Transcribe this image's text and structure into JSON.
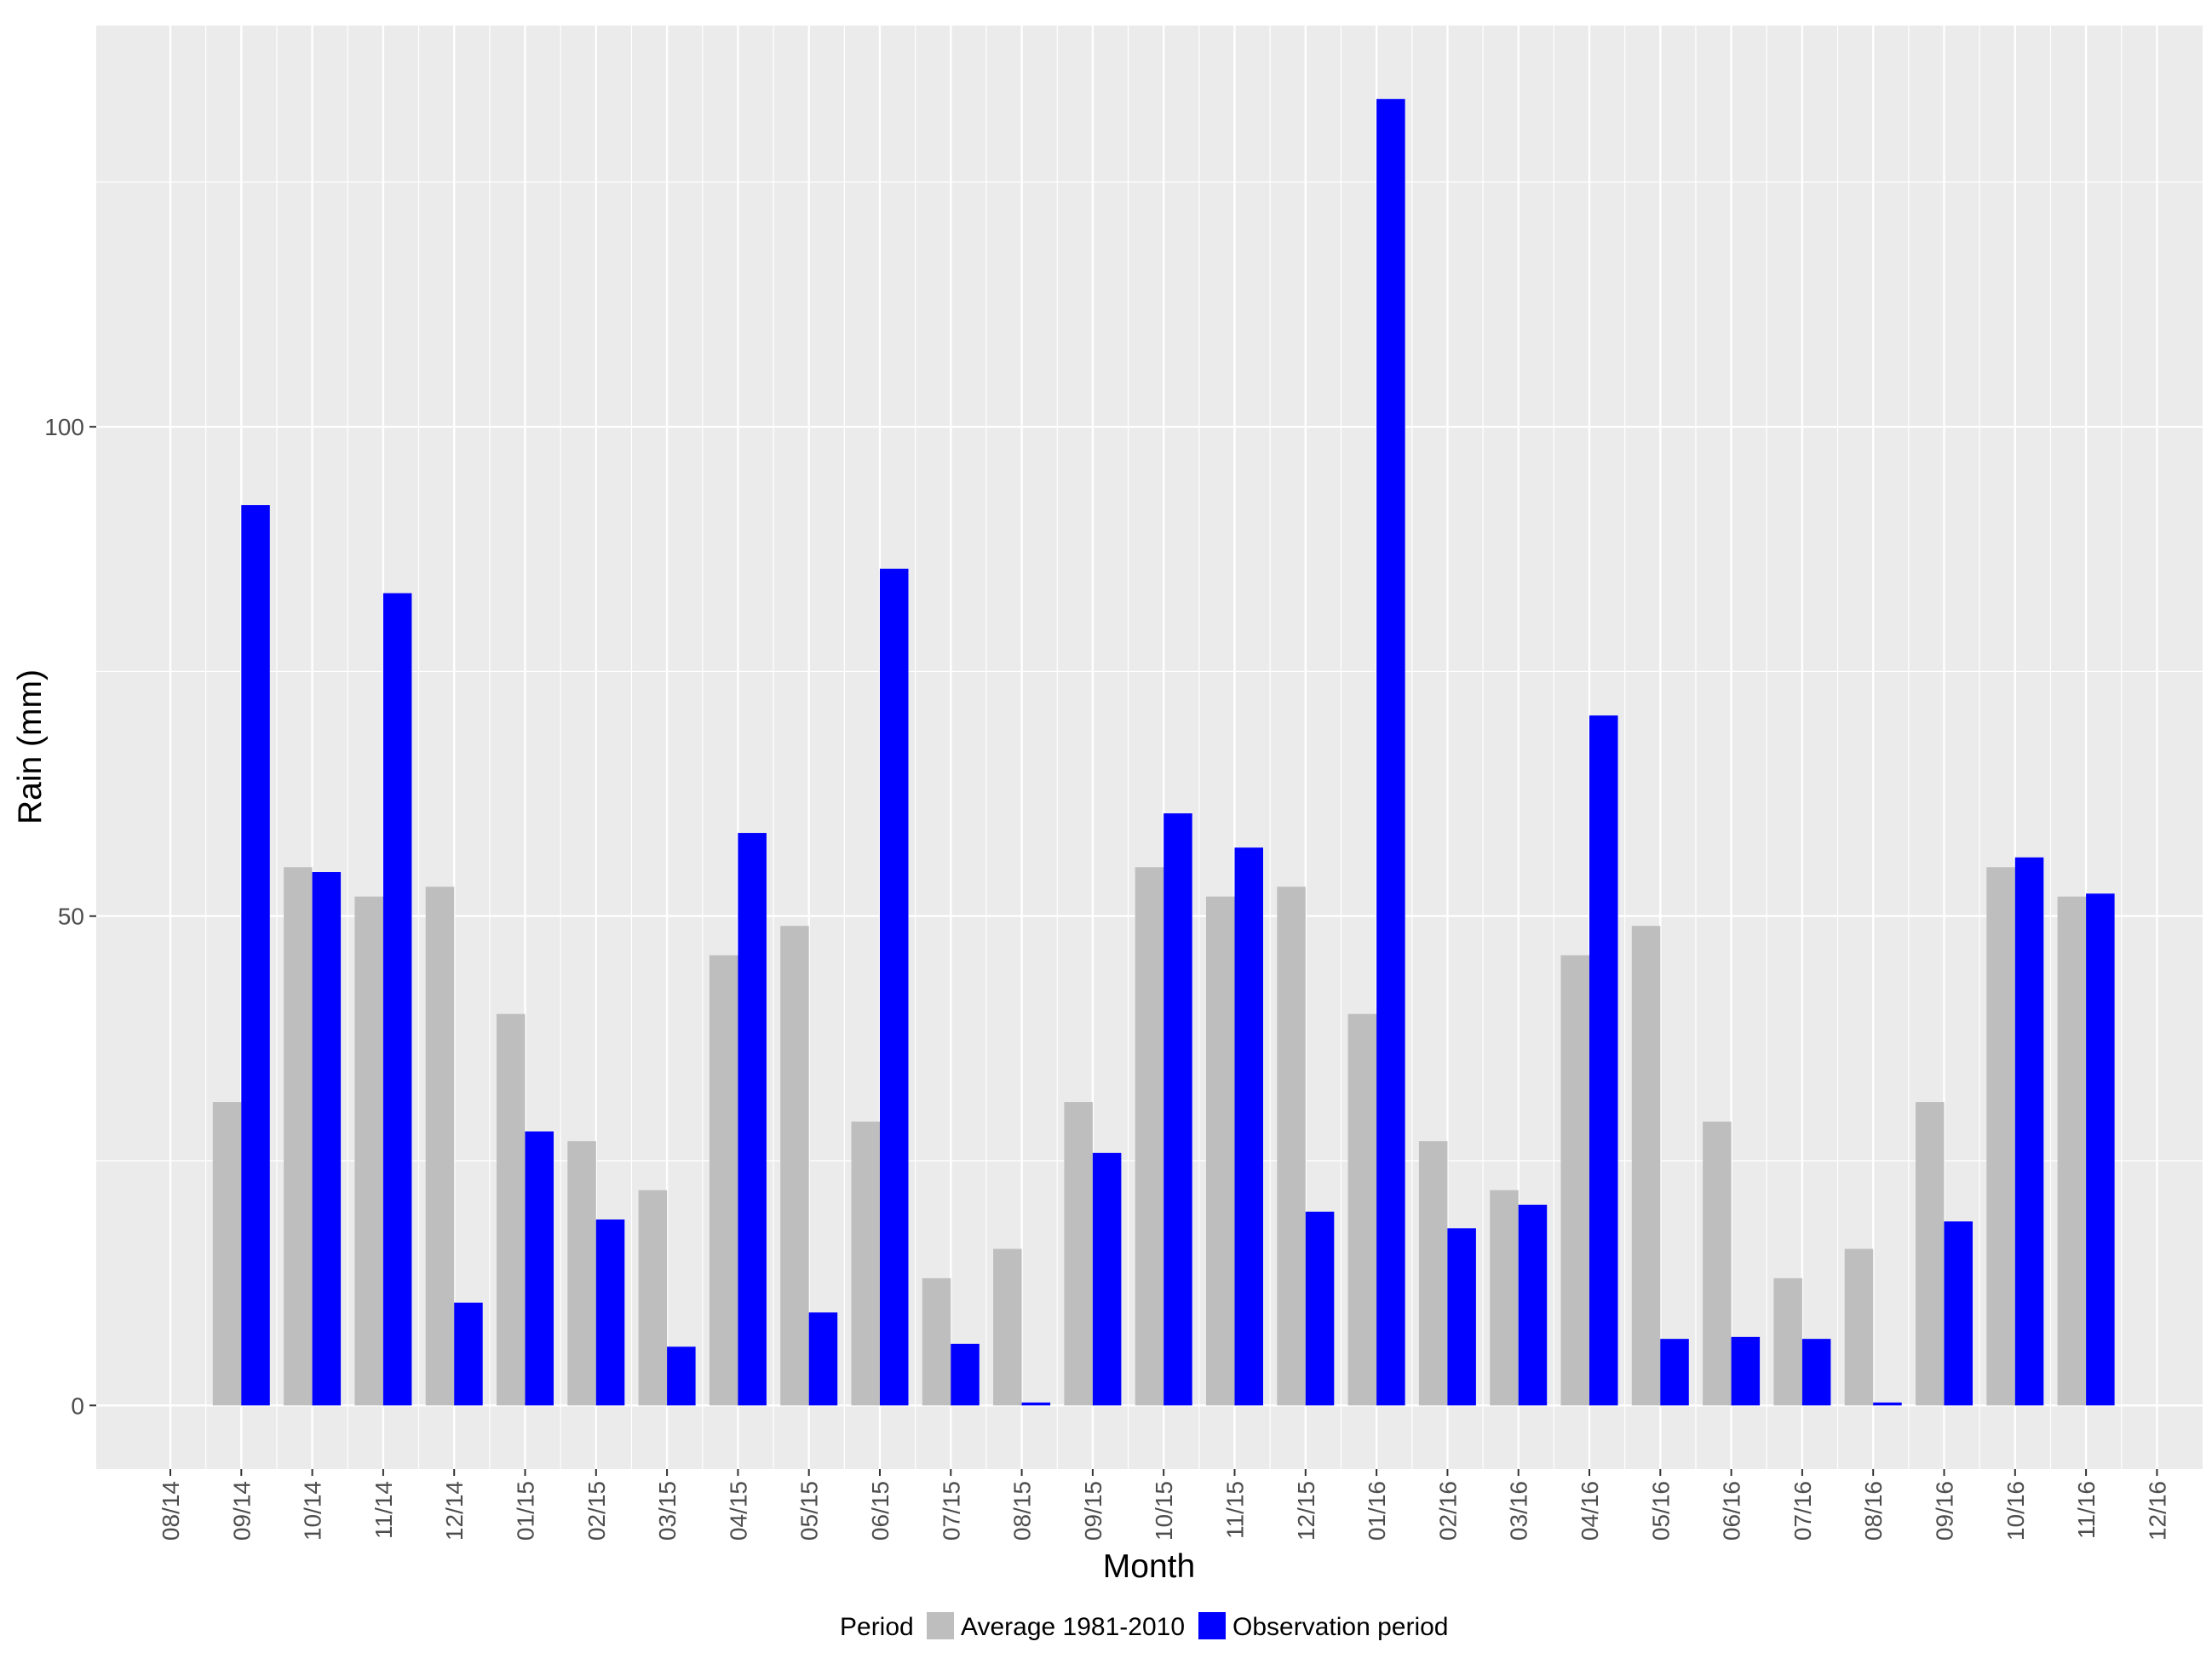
{
  "chart_data": {
    "type": "bar",
    "xlabel": "Month",
    "ylabel": "Rain (mm)",
    "ylim": [
      -6.5,
      141
    ],
    "y_ticks": [
      0,
      50,
      100
    ],
    "y_tick_labels": [
      "0",
      "50",
      "100"
    ],
    "grid": true,
    "legend_position": "bottom",
    "legend_title": "Period",
    "categories": [
      "08/14",
      "09/14",
      "10/14",
      "11/14",
      "12/14",
      "01/15",
      "02/15",
      "03/15",
      "04/15",
      "05/15",
      "06/15",
      "07/15",
      "08/15",
      "09/15",
      "10/15",
      "11/15",
      "12/15",
      "01/16",
      "02/16",
      "03/16",
      "04/16",
      "05/16",
      "06/16",
      "07/16",
      "08/16",
      "09/16",
      "10/16",
      "11/16",
      "12/16"
    ],
    "series": [
      {
        "name": "Average 1981-2010",
        "color": "#bebebe",
        "values": [
          null,
          31,
          55,
          52,
          53,
          40,
          27,
          22,
          46,
          49,
          29,
          13,
          16,
          31,
          55,
          52,
          53,
          40,
          27,
          22,
          46,
          49,
          29,
          13,
          16,
          31,
          55,
          52,
          null
        ]
      },
      {
        "name": "Observation period",
        "color": "#0000ff",
        "values": [
          null,
          92,
          54.5,
          83,
          10.5,
          28,
          19,
          6,
          58.5,
          9.5,
          85.5,
          6.3,
          0.3,
          25.8,
          60.5,
          57,
          19.8,
          133.5,
          18.1,
          20.5,
          70.5,
          6.8,
          7,
          6.8,
          0.3,
          18.8,
          56,
          52.3,
          null
        ]
      }
    ]
  }
}
